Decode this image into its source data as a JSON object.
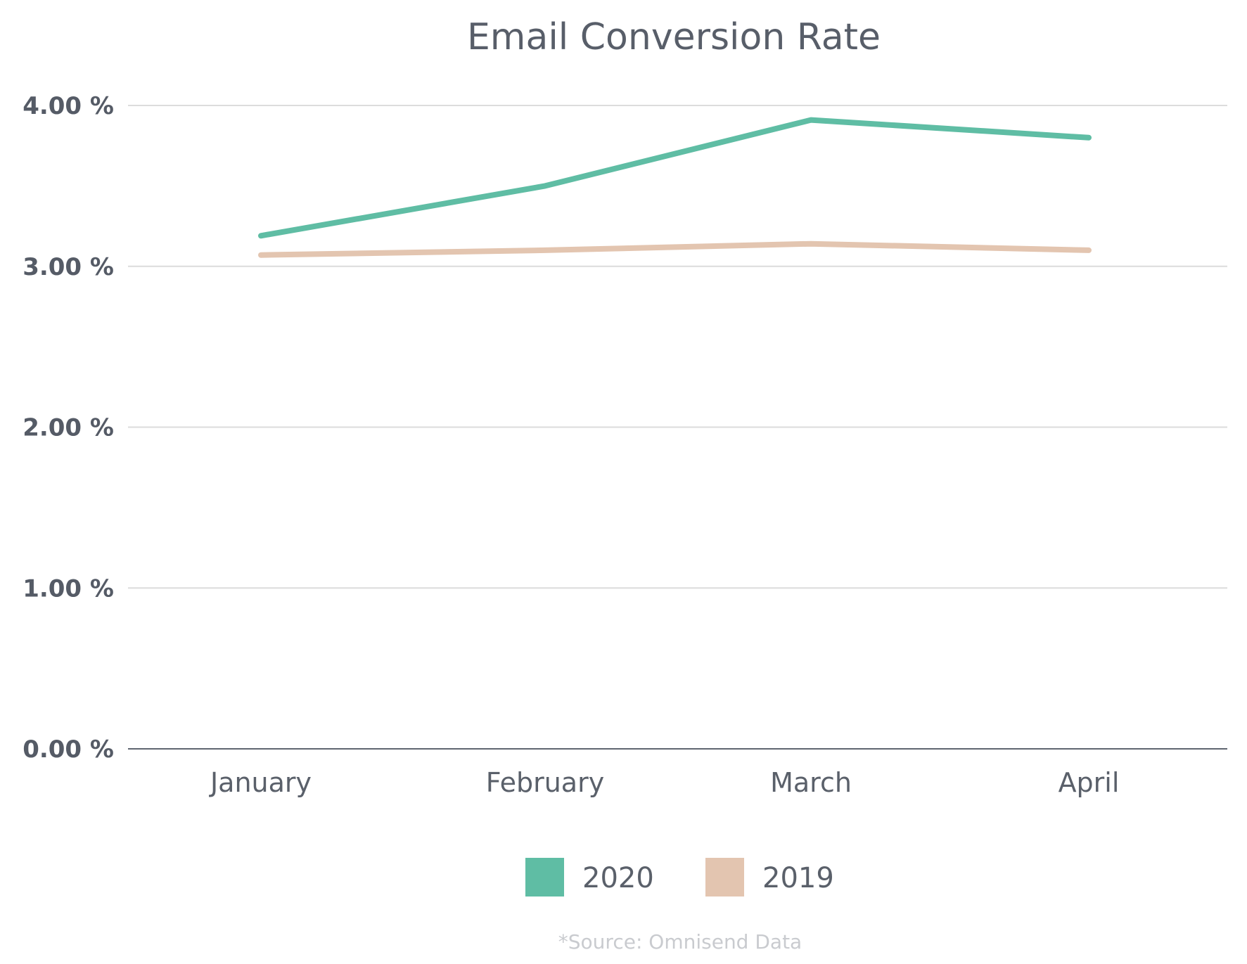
{
  "chart_data": {
    "type": "line",
    "title": "Email Conversion Rate",
    "categories": [
      "January",
      "February",
      "March",
      "April"
    ],
    "y_tick_labels": [
      "0.00 %",
      "1.00 %",
      "2.00 %",
      "3.00 %",
      "4.00 %"
    ],
    "y_ticks": [
      0,
      1,
      2,
      3,
      4
    ],
    "ylim": [
      0,
      4
    ],
    "grid": true,
    "legend_position": "bottom",
    "series": [
      {
        "name": "2020",
        "color": "#5fbda4",
        "values": [
          3.19,
          3.5,
          3.91,
          3.8
        ]
      },
      {
        "name": "2019",
        "color": "#e3c5b0",
        "values": [
          3.07,
          3.1,
          3.14,
          3.1
        ]
      }
    ],
    "source_note": "*Source: Omnisend Data"
  }
}
